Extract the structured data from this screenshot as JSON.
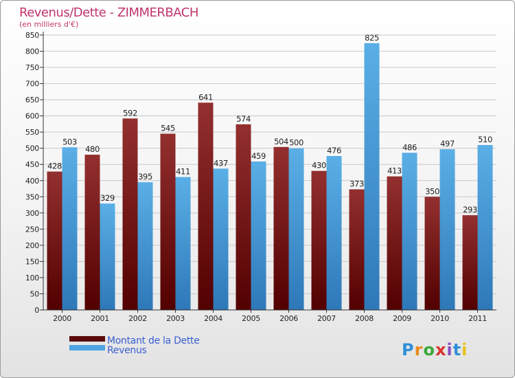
{
  "chart_data": {
    "type": "bar",
    "title": "Revenus/Dette - ZIMMERBACH",
    "subtitle": "(en milliers d'€)",
    "categories": [
      "2000",
      "2001",
      "2002",
      "2003",
      "2004",
      "2005",
      "2006",
      "2007",
      "2008",
      "2009",
      "2010",
      "2011"
    ],
    "series": [
      {
        "name": "Montant de la Dette",
        "color": "#7a1a1a",
        "values": [
          428,
          480,
          592,
          545,
          641,
          574,
          504,
          430,
          373,
          413,
          350,
          293
        ]
      },
      {
        "name": "Revenus",
        "color": "#4ea3e0",
        "values": [
          503,
          329,
          395,
          411,
          437,
          459,
          500,
          476,
          825,
          486,
          497,
          510
        ]
      }
    ],
    "ylim": [
      0,
      850
    ],
    "ytick_step": 50,
    "grid": true,
    "legend_position": "bottom-left"
  },
  "brand": {
    "logo_letters": [
      "P",
      "r",
      "o",
      "x",
      "i",
      "t",
      "i"
    ],
    "logo_colors": [
      "#2f8fd8",
      "#e88a1a",
      "#3aa838",
      "#d8342a",
      "#8a4fc0",
      "#2f8fd8",
      "#e8c21a"
    ]
  }
}
